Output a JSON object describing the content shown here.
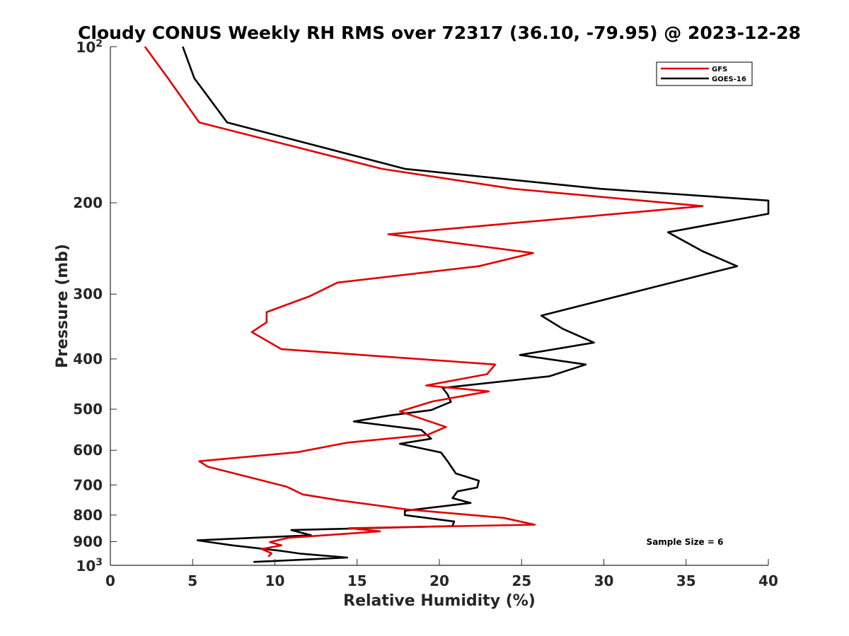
{
  "chart_data": {
    "type": "line",
    "title": "Cloudy CONUS Weekly RH RMS over 72317 (36.10, -79.95) @ 2023-12-28",
    "xlabel": "Relative Humidity (%)",
    "ylabel": "Pressure (mb)",
    "xlim": [
      0,
      40
    ],
    "ylim": [
      100,
      1000
    ],
    "y_scale": "log",
    "y_reversed": true,
    "grid": false,
    "legend_position": "top-right",
    "x_ticks": [
      "0",
      "5",
      "10",
      "15",
      "20",
      "25",
      "30",
      "35",
      "40"
    ],
    "y_ticks": [
      {
        "value": 100,
        "base": "10",
        "exp": "2"
      },
      {
        "value": 200,
        "label": "200"
      },
      {
        "value": 300,
        "label": "300"
      },
      {
        "value": 400,
        "label": "400"
      },
      {
        "value": 500,
        "label": "500"
      },
      {
        "value": 600,
        "label": "600"
      },
      {
        "value": 700,
        "label": "700"
      },
      {
        "value": 800,
        "label": "800"
      },
      {
        "value": 900,
        "label": "900"
      },
      {
        "value": 1000,
        "base": "10",
        "exp": "3"
      }
    ],
    "annotation": "Sample Size = 6",
    "series": [
      {
        "name": "GFS",
        "color": "#e00000",
        "points": [
          [
            2.1,
            100
          ],
          [
            3.5,
            115
          ],
          [
            5.4,
            140
          ],
          [
            16.5,
            172
          ],
          [
            24.5,
            188
          ],
          [
            36.0,
            203
          ],
          [
            16.9,
            230
          ],
          [
            25.7,
            250
          ],
          [
            22.4,
            265
          ],
          [
            13.8,
            285
          ],
          [
            12.1,
            303
          ],
          [
            9.5,
            325
          ],
          [
            9.5,
            340
          ],
          [
            8.6,
            355
          ],
          [
            10.4,
            383
          ],
          [
            23.4,
            410
          ],
          [
            22.9,
            428
          ],
          [
            19.2,
            450
          ],
          [
            23.0,
            462
          ],
          [
            19.6,
            483
          ],
          [
            17.6,
            505
          ],
          [
            20.4,
            541
          ],
          [
            19.3,
            560
          ],
          [
            14.4,
            580
          ],
          [
            11.4,
            605
          ],
          [
            5.4,
            630
          ],
          [
            5.9,
            645
          ],
          [
            10.7,
            705
          ],
          [
            11.7,
            730
          ],
          [
            14.0,
            750
          ],
          [
            18.0,
            780
          ],
          [
            23.9,
            810
          ],
          [
            25.8,
            835
          ],
          [
            14.5,
            848
          ],
          [
            16.4,
            860
          ],
          [
            10.8,
            885
          ],
          [
            9.7,
            902
          ],
          [
            10.4,
            915
          ],
          [
            9.2,
            930
          ],
          [
            9.8,
            948
          ],
          [
            9.6,
            962
          ]
        ]
      },
      {
        "name": "GOES-16",
        "color": "#000000",
        "points": [
          [
            4.4,
            100
          ],
          [
            5.1,
            115
          ],
          [
            7.1,
            140
          ],
          [
            17.9,
            172
          ],
          [
            29.8,
            188
          ],
          [
            40.0,
            198
          ],
          [
            40.0,
            210
          ],
          [
            33.9,
            228
          ],
          [
            36.0,
            248
          ],
          [
            38.1,
            265
          ],
          [
            33.2,
            290
          ],
          [
            26.2,
            330
          ],
          [
            27.5,
            350
          ],
          [
            29.4,
            372
          ],
          [
            24.9,
            393
          ],
          [
            28.9,
            410
          ],
          [
            26.7,
            432
          ],
          [
            20.2,
            455
          ],
          [
            20.5,
            468
          ],
          [
            20.7,
            484
          ],
          [
            19.5,
            502
          ],
          [
            17.0,
            514
          ],
          [
            14.8,
            528
          ],
          [
            18.9,
            548
          ],
          [
            19.5,
            570
          ],
          [
            17.6,
            583
          ],
          [
            20.1,
            606
          ],
          [
            20.5,
            630
          ],
          [
            21.0,
            665
          ],
          [
            22.4,
            687
          ],
          [
            22.3,
            708
          ],
          [
            21.1,
            720
          ],
          [
            20.8,
            742
          ],
          [
            21.9,
            758
          ],
          [
            17.9,
            785
          ],
          [
            17.9,
            800
          ],
          [
            20.9,
            823
          ],
          [
            20.8,
            840
          ],
          [
            11.0,
            855
          ],
          [
            12.2,
            875
          ],
          [
            5.3,
            895
          ],
          [
            7.4,
            915
          ],
          [
            10.4,
            938
          ],
          [
            11.6,
            950
          ],
          [
            14.4,
            966
          ],
          [
            8.7,
            985
          ]
        ]
      }
    ]
  }
}
